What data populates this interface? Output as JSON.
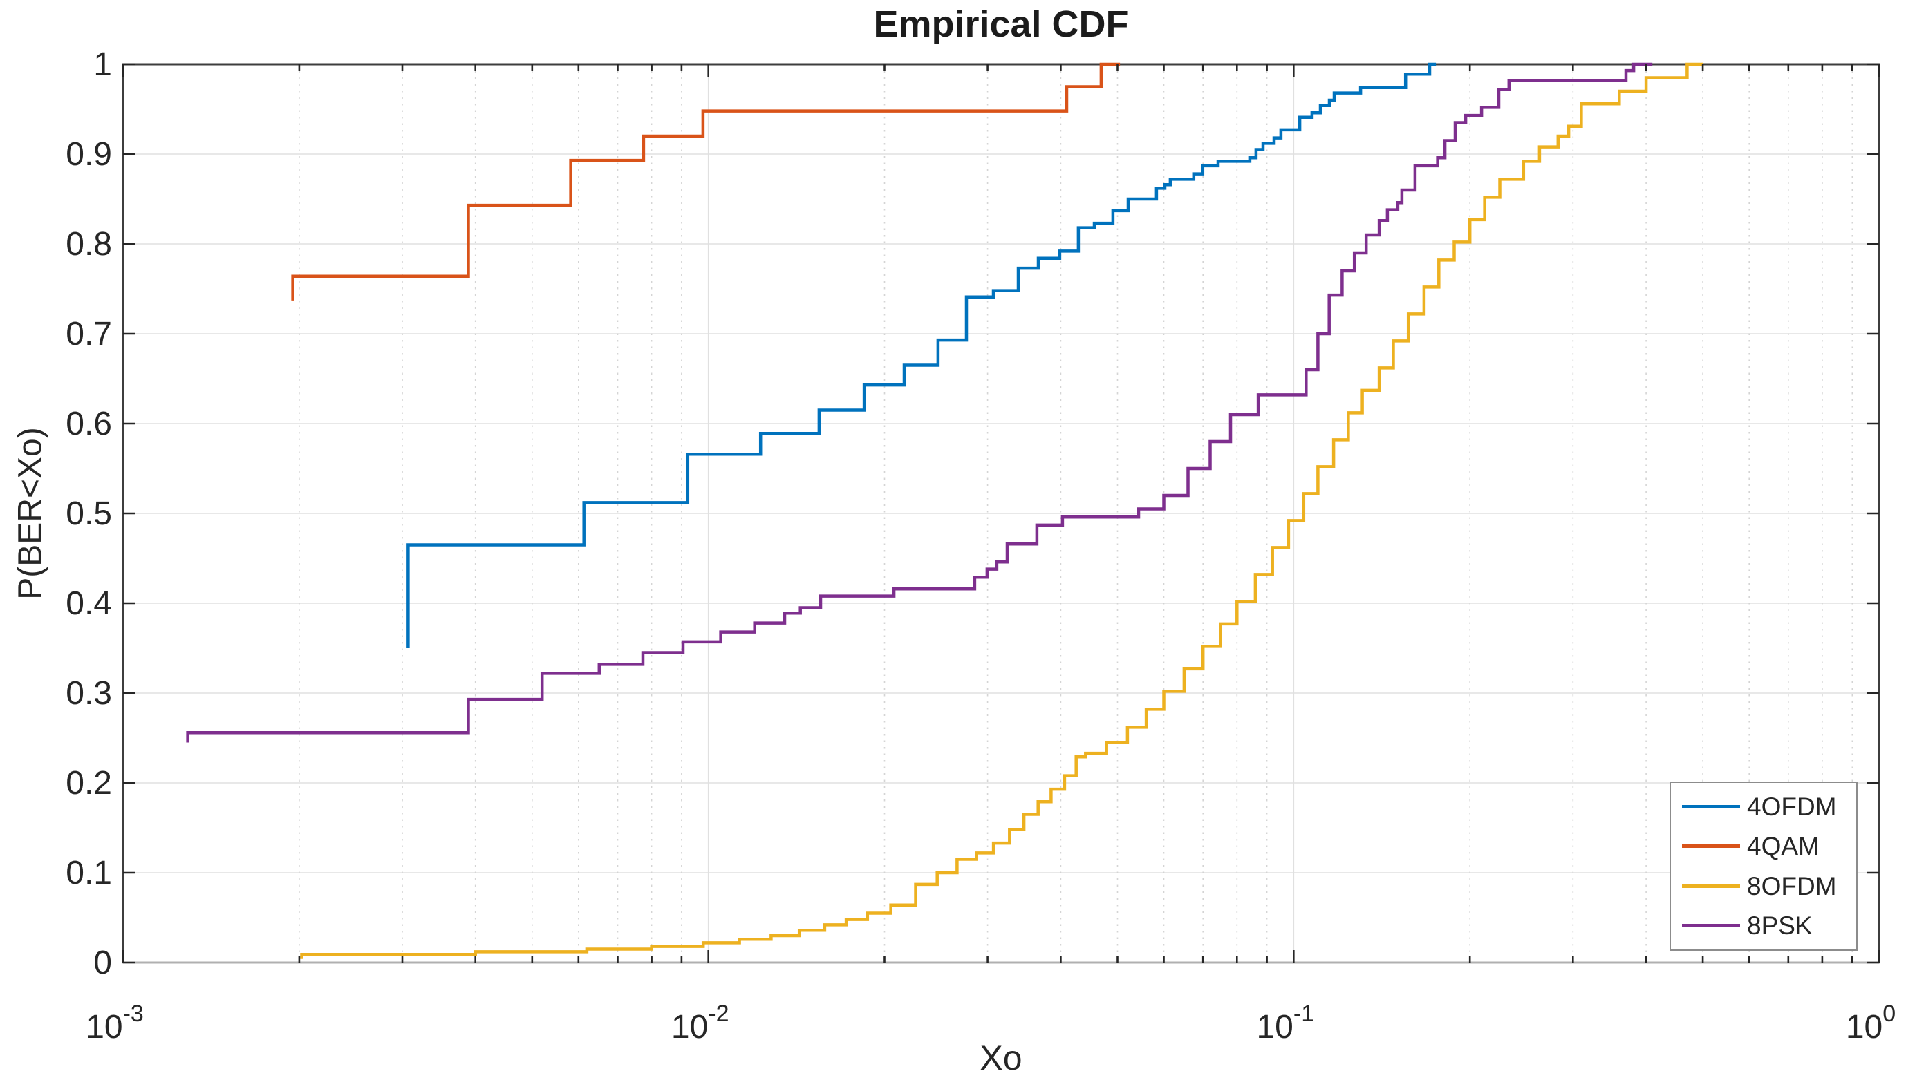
{
  "title": "Empirical CDF",
  "xlabel": "Xo",
  "ylabel": "P(BER<Xo)",
  "axes": {
    "x_scale": "log",
    "x_ticks": [
      {
        "base": "10",
        "exp": "-3",
        "value": 0.001
      },
      {
        "base": "10",
        "exp": "-2",
        "value": 0.01
      },
      {
        "base": "10",
        "exp": "-1",
        "value": 0.1
      },
      {
        "base": "10",
        "exp": "0",
        "value": 1
      }
    ],
    "y_ticks": [
      {
        "label": "0",
        "value": 0
      },
      {
        "label": "0.1",
        "value": 0.1
      },
      {
        "label": "0.2",
        "value": 0.2
      },
      {
        "label": "0.3",
        "value": 0.3
      },
      {
        "label": "0.4",
        "value": 0.4
      },
      {
        "label": "0.5",
        "value": 0.5
      },
      {
        "label": "0.6",
        "value": 0.6
      },
      {
        "label": "0.7",
        "value": 0.7
      },
      {
        "label": "0.8",
        "value": 0.8
      },
      {
        "label": "0.9",
        "value": 0.9
      },
      {
        "label": "1",
        "value": 1
      }
    ]
  },
  "legend": {
    "items": [
      {
        "label": "4OFDM",
        "color": "#0072BD"
      },
      {
        "label": "4QAM",
        "color": "#D95319"
      },
      {
        "label": "8OFDM",
        "color": "#EDB120"
      },
      {
        "label": "8PSK",
        "color": "#7E2F8E"
      }
    ]
  },
  "colors": {
    "axis_dark": "#3d3d3d",
    "axis_bottom": "#b0b0b0",
    "grid_major": "#e0e0e0",
    "grid_minor": "#d4d4d4",
    "tick": "#262626",
    "tick_label": "#262626"
  },
  "chart_data": {
    "type": "line",
    "subtype": "empirical-cdf-staircase",
    "title": "Empirical CDF",
    "xlabel": "Xo",
    "ylabel": "P(BER<Xo)",
    "xscale": "log",
    "xlim": [
      0.001,
      1
    ],
    "ylim": [
      0,
      1
    ],
    "grid": true,
    "legend_position": "lower-right",
    "series": [
      {
        "name": "4OFDM",
        "color": "#0072BD",
        "start_p": 0.35,
        "end_x": 0.175,
        "points": [
          [
            0.00307,
            0.465
          ],
          [
            0.00613,
            0.512
          ],
          [
            0.00922,
            0.566
          ],
          [
            0.01228,
            0.589
          ],
          [
            0.01546,
            0.615
          ],
          [
            0.01846,
            0.643
          ],
          [
            0.02161,
            0.665
          ],
          [
            0.02468,
            0.693
          ],
          [
            0.0276,
            0.741
          ],
          [
            0.03069,
            0.748
          ],
          [
            0.03385,
            0.773
          ],
          [
            0.03663,
            0.784
          ],
          [
            0.03984,
            0.792
          ],
          [
            0.04287,
            0.818
          ],
          [
            0.04565,
            0.823
          ],
          [
            0.04912,
            0.837
          ],
          [
            0.05216,
            0.85
          ],
          [
            0.0583,
            0.862
          ],
          [
            0.06024,
            0.866
          ],
          [
            0.06156,
            0.872
          ],
          [
            0.0675,
            0.878
          ],
          [
            0.06993,
            0.887
          ],
          [
            0.07427,
            0.892
          ],
          [
            0.08415,
            0.896
          ],
          [
            0.08625,
            0.905
          ],
          [
            0.08863,
            0.912
          ],
          [
            0.09258,
            0.918
          ],
          [
            0.09512,
            0.927
          ],
          [
            0.1024,
            0.941
          ],
          [
            0.1075,
            0.946
          ],
          [
            0.1111,
            0.954
          ],
          [
            0.1151,
            0.96
          ],
          [
            0.1173,
            0.968
          ],
          [
            0.1301,
            0.974
          ],
          [
            0.1553,
            0.989
          ],
          [
            0.1707,
            1.0
          ]
        ]
      },
      {
        "name": "4QAM",
        "color": "#D95319",
        "start_p": 0.737,
        "end_x": 0.0505,
        "points": [
          [
            0.00195,
            0.764
          ],
          [
            0.00389,
            0.843
          ],
          [
            0.00582,
            0.893
          ],
          [
            0.00775,
            0.92
          ],
          [
            0.00979,
            0.948
          ],
          [
            0.04094,
            0.975
          ],
          [
            0.0469,
            1.0
          ]
        ]
      },
      {
        "name": "8OFDM",
        "color": "#EDB120",
        "start_p": 0.004,
        "end_x": 0.5,
        "points": [
          [
            0.00202,
            0.009
          ],
          [
            0.004,
            0.012
          ],
          [
            0.0062,
            0.015
          ],
          [
            0.008,
            0.018
          ],
          [
            0.0098,
            0.022
          ],
          [
            0.0113,
            0.026
          ],
          [
            0.0128,
            0.03
          ],
          [
            0.0143,
            0.036
          ],
          [
            0.0158,
            0.042
          ],
          [
            0.0172,
            0.048
          ],
          [
            0.0187,
            0.055
          ],
          [
            0.0205,
            0.064
          ],
          [
            0.0226,
            0.087
          ],
          [
            0.0246,
            0.1
          ],
          [
            0.0266,
            0.115
          ],
          [
            0.0287,
            0.122
          ],
          [
            0.0307,
            0.133
          ],
          [
            0.0327,
            0.148
          ],
          [
            0.0346,
            0.165
          ],
          [
            0.0366,
            0.179
          ],
          [
            0.0385,
            0.193
          ],
          [
            0.0406,
            0.208
          ],
          [
            0.0425,
            0.229
          ],
          [
            0.0441,
            0.233
          ],
          [
            0.0479,
            0.245
          ],
          [
            0.052,
            0.262
          ],
          [
            0.056,
            0.282
          ],
          [
            0.06,
            0.302
          ],
          [
            0.065,
            0.327
          ],
          [
            0.07,
            0.352
          ],
          [
            0.075,
            0.377
          ],
          [
            0.08,
            0.402
          ],
          [
            0.086,
            0.432
          ],
          [
            0.092,
            0.462
          ],
          [
            0.098,
            0.492
          ],
          [
            0.104,
            0.522
          ],
          [
            0.11,
            0.552
          ],
          [
            0.117,
            0.582
          ],
          [
            0.124,
            0.612
          ],
          [
            0.131,
            0.637
          ],
          [
            0.14,
            0.662
          ],
          [
            0.148,
            0.692
          ],
          [
            0.157,
            0.722
          ],
          [
            0.167,
            0.752
          ],
          [
            0.177,
            0.782
          ],
          [
            0.188,
            0.802
          ],
          [
            0.2,
            0.827
          ],
          [
            0.212,
            0.852
          ],
          [
            0.225,
            0.872
          ],
          [
            0.247,
            0.892
          ],
          [
            0.263,
            0.908
          ],
          [
            0.283,
            0.92
          ],
          [
            0.295,
            0.931
          ],
          [
            0.31,
            0.956
          ],
          [
            0.36,
            0.97
          ],
          [
            0.4,
            0.985
          ],
          [
            0.47,
            1.0
          ]
        ]
      },
      {
        "name": "8PSK",
        "color": "#7E2F8E",
        "start_p": 0.245,
        "end_x": 0.41,
        "points": [
          [
            0.00129,
            0.256
          ],
          [
            0.00389,
            0.293
          ],
          [
            0.0052,
            0.322
          ],
          [
            0.00651,
            0.332
          ],
          [
            0.00773,
            0.345
          ],
          [
            0.00905,
            0.357
          ],
          [
            0.0105,
            0.368
          ],
          [
            0.012,
            0.378
          ],
          [
            0.0135,
            0.389
          ],
          [
            0.01436,
            0.395
          ],
          [
            0.01555,
            0.408
          ],
          [
            0.02075,
            0.416
          ],
          [
            0.02851,
            0.429
          ],
          [
            0.02994,
            0.438
          ],
          [
            0.0311,
            0.446
          ],
          [
            0.03241,
            0.466
          ],
          [
            0.03642,
            0.487
          ],
          [
            0.04027,
            0.496
          ],
          [
            0.05433,
            0.505
          ],
          [
            0.06,
            0.52
          ],
          [
            0.066,
            0.55
          ],
          [
            0.072,
            0.58
          ],
          [
            0.078,
            0.61
          ],
          [
            0.087,
            0.632
          ],
          [
            0.105,
            0.66
          ],
          [
            0.11,
            0.7
          ],
          [
            0.115,
            0.743
          ],
          [
            0.121,
            0.77
          ],
          [
            0.127,
            0.79
          ],
          [
            0.133,
            0.81
          ],
          [
            0.14,
            0.826
          ],
          [
            0.1446,
            0.838
          ],
          [
            0.1506,
            0.846
          ],
          [
            0.1531,
            0.86
          ],
          [
            0.1612,
            0.887
          ],
          [
            0.1762,
            0.896
          ],
          [
            0.1813,
            0.915
          ],
          [
            0.1888,
            0.935
          ],
          [
            0.1967,
            0.943
          ],
          [
            0.2094,
            0.952
          ],
          [
            0.2241,
            0.972
          ],
          [
            0.2333,
            0.982
          ],
          [
            0.3696,
            0.993
          ],
          [
            0.3809,
            1.0
          ]
        ]
      }
    ]
  }
}
